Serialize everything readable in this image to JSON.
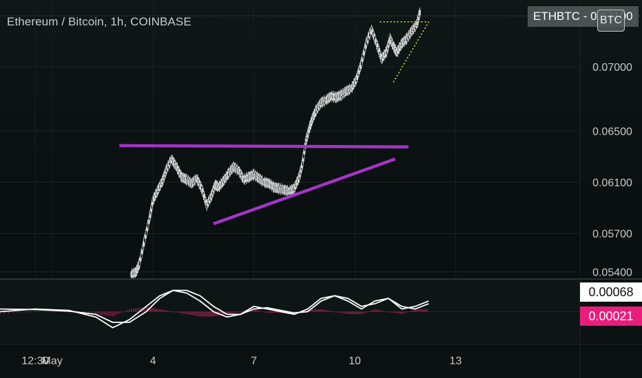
{
  "header": {
    "title": "Ethereum / Bitcoin, 1h, COINBASE",
    "symbol_badge": "ETHBTC - 0.07100",
    "currency_button": "BTC"
  },
  "indicator": {
    "value_1": "0.00068",
    "value_2": "0.00021",
    "color_1": "#ffffff",
    "color_2": "#e91e7b"
  },
  "colors": {
    "background": "#0b1010",
    "candles": "#d8dadb",
    "trendline": "#a334c6",
    "projection": "#e6ef3a"
  },
  "chart_data": {
    "type": "line",
    "title": "Ethereum / Bitcoin, 1h, COINBASE",
    "y_ticks": [
      0.054,
      0.057,
      0.061,
      0.065,
      0.07
    ],
    "y_tick_labels": [
      "0.05400",
      "0.05700",
      "0.06100",
      "0.06500",
      "0.07000"
    ],
    "x_ticks": [
      0.5,
      1,
      4,
      7,
      10,
      13
    ],
    "x_tick_labels": [
      "12:30",
      "May",
      "4",
      "7",
      "10",
      "13"
    ],
    "ylim": [
      0.0535,
      0.0752
    ],
    "xlim": [
      -0.55,
      16.7
    ],
    "series": [
      {
        "values_x": [
          3.35,
          3.5,
          3.6,
          3.75,
          3.9,
          4.0,
          4.15,
          4.3,
          4.4,
          4.55,
          4.7,
          4.85,
          5.0,
          5.15,
          5.3,
          5.45,
          5.6,
          5.75,
          5.85,
          5.95,
          6.1,
          6.25,
          6.4,
          6.55,
          6.7,
          6.85,
          7.0,
          7.15,
          7.3,
          7.45,
          7.6,
          7.75,
          7.9,
          8.05,
          8.2,
          8.35,
          8.45,
          8.55,
          8.65,
          8.75,
          8.85,
          9.0,
          9.15,
          9.3,
          9.45,
          9.6,
          9.75,
          9.9,
          10.05,
          10.2,
          10.35,
          10.5,
          10.65,
          10.8,
          10.95,
          11.05,
          11.15,
          11.25,
          11.4,
          11.55,
          11.7,
          11.85,
          11.95
        ],
        "values_y": [
          0.0538,
          0.054,
          0.0547,
          0.0565,
          0.0582,
          0.0596,
          0.0604,
          0.0612,
          0.062,
          0.0628,
          0.0622,
          0.0614,
          0.0612,
          0.0609,
          0.0613,
          0.0605,
          0.0592,
          0.06,
          0.0608,
          0.0606,
          0.0611,
          0.0617,
          0.0622,
          0.0619,
          0.0612,
          0.0614,
          0.0616,
          0.0613,
          0.061,
          0.0609,
          0.0606,
          0.0605,
          0.0604,
          0.0603,
          0.0605,
          0.0614,
          0.0625,
          0.0642,
          0.0652,
          0.066,
          0.0666,
          0.0672,
          0.0674,
          0.0677,
          0.0676,
          0.0678,
          0.0681,
          0.0683,
          0.069,
          0.0703,
          0.0719,
          0.0729,
          0.0718,
          0.0706,
          0.0712,
          0.0722,
          0.0716,
          0.0711,
          0.0718,
          0.0722,
          0.0728,
          0.0733,
          0.0744
        ]
      }
    ],
    "trendlines": [
      {
        "kind": "resistance",
        "x": [
          3.0,
          11.6
        ],
        "y": [
          0.06385,
          0.06375
        ]
      },
      {
        "kind": "support",
        "x": [
          5.8,
          11.2
        ],
        "y": [
          0.05775,
          0.0628
        ]
      }
    ],
    "projection": [
      {
        "x": [
          10.75,
          12.2
        ],
        "y": [
          0.0735,
          0.0735
        ]
      },
      {
        "x": [
          11.15,
          12.2
        ],
        "y": [
          0.0688,
          0.0735
        ]
      }
    ],
    "oscillator": {
      "ylim": [
        -0.0012,
        0.0012
      ],
      "line_1": {
        "x": [
          -0.55,
          0.5,
          1.5,
          2.3,
          2.8,
          3.3,
          3.8,
          4.2,
          4.6,
          5.0,
          5.4,
          5.8,
          6.2,
          6.6,
          7.0,
          7.4,
          7.8,
          8.2,
          8.6,
          9.0,
          9.4,
          9.8,
          10.2,
          10.6,
          11.0,
          11.4,
          11.8,
          12.2
        ],
        "y": [
          0.0,
          0.0001,
          5e-05,
          -0.0002,
          -0.0006,
          -0.0003,
          0.0002,
          0.0006,
          0.0008,
          0.0007,
          0.0004,
          0.0,
          -0.0002,
          -0.0001,
          0.0002,
          0.0001,
          0.0,
          -0.0001,
          0.0001,
          0.0005,
          0.0006,
          0.0004,
          0.0001,
          0.0004,
          0.0005,
          0.0001,
          0.0002,
          0.0004
        ]
      },
      "line_2": {
        "x": [
          -0.55,
          0.5,
          1.5,
          2.3,
          2.8,
          3.3,
          3.8,
          4.2,
          4.6,
          5.0,
          5.4,
          5.8,
          6.2,
          6.6,
          7.0,
          7.4,
          7.8,
          8.2,
          8.6,
          9.0,
          9.4,
          9.8,
          10.2,
          10.6,
          11.0,
          11.4,
          11.8,
          12.2
        ],
        "y": [
          0.0001,
          8e-05,
          2e-05,
          -0.0001,
          -0.0004,
          -0.0004,
          0.0,
          0.0005,
          0.0008,
          0.0008,
          0.0006,
          0.0002,
          -0.0001,
          -0.0001,
          0.0001,
          0.00015,
          5e-05,
          -5e-05,
          0.0,
          0.0004,
          0.0006,
          0.0005,
          0.0002,
          0.0003,
          0.0005,
          0.0002,
          0.0001,
          0.0003
        ]
      },
      "histogram_color": "#7a1f3e"
    }
  }
}
